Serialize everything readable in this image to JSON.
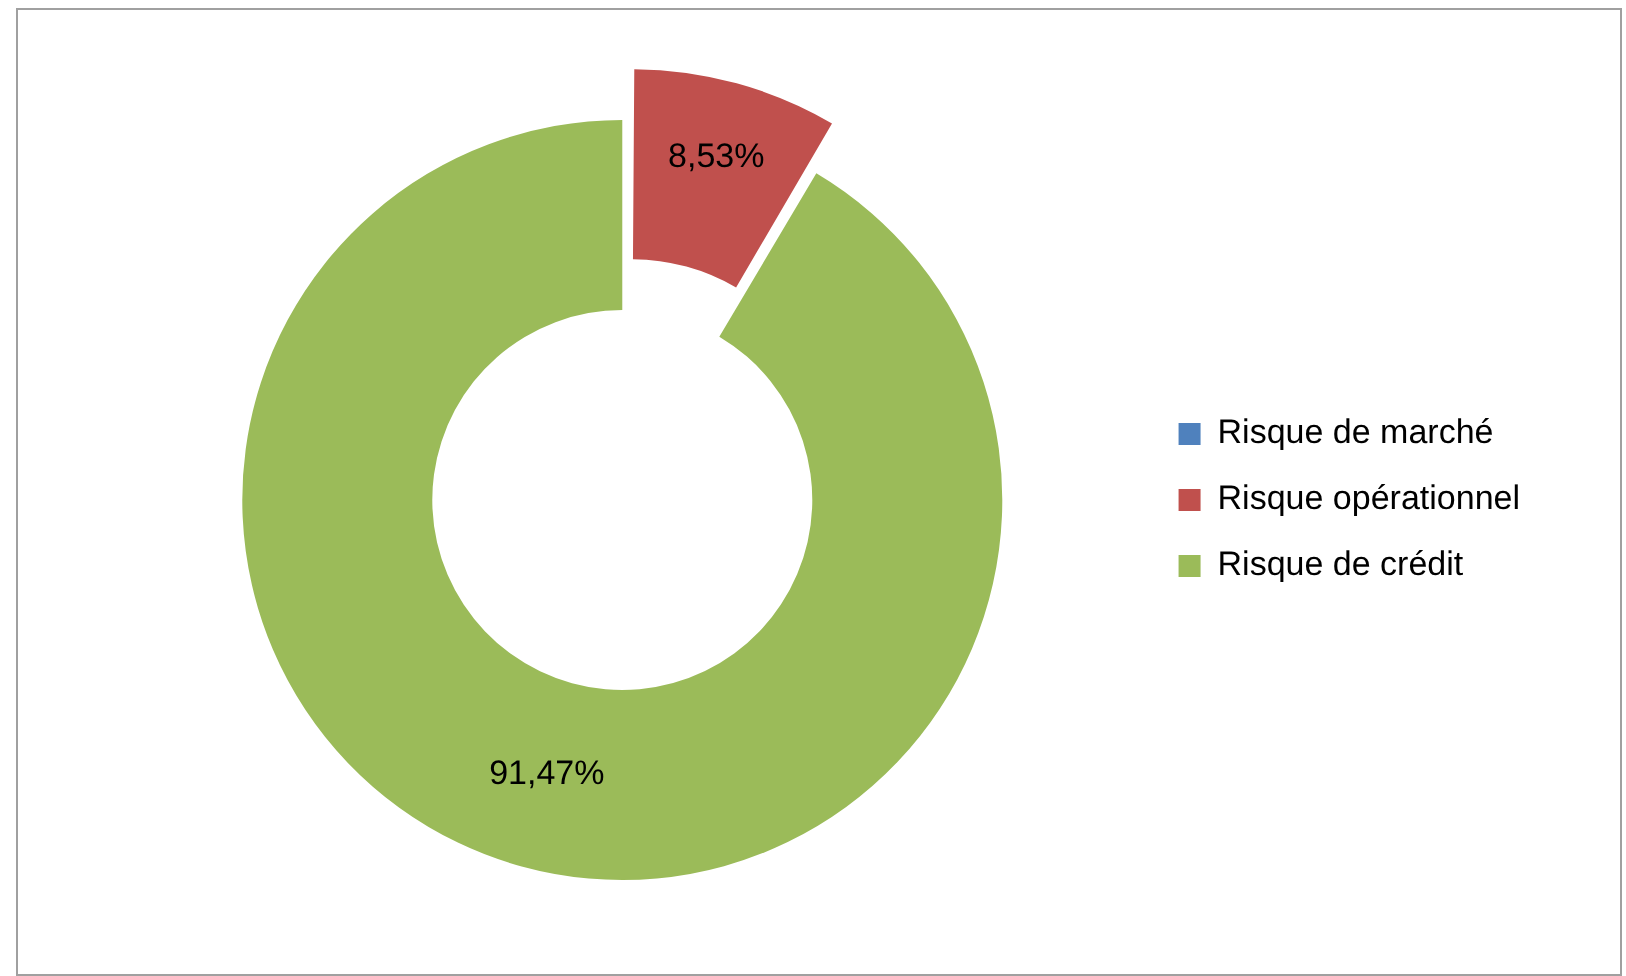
{
  "chart_data": {
    "type": "donut",
    "categories": [
      "Risque de marché",
      "Risque opérationnel",
      "Risque de crédit"
    ],
    "values": [
      0,
      8.53,
      91.47
    ],
    "colors": [
      "#4f81bd",
      "#c0504d",
      "#9bbb59"
    ],
    "value_labels": [
      null,
      "8,53%",
      "91,47%"
    ],
    "legend": "right"
  }
}
